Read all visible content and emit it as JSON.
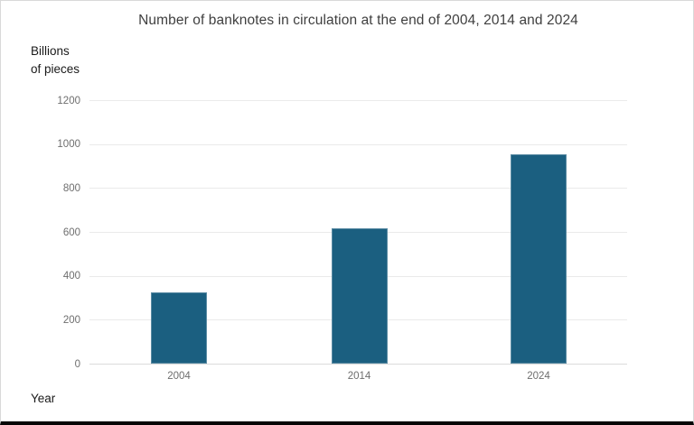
{
  "window": {
    "background": "#ffffff",
    "frame_border_color": "#d9d9d9",
    "bottom_bar_color": "#060606"
  },
  "chart_data": {
    "type": "bar",
    "title": "Number of banknotes in circulation at the end of 2004, 2014 and 2024",
    "y_unit_label_line1": "Billions",
    "y_unit_label_line2": "of pieces",
    "x_axis_label": "Year",
    "categories": [
      "2004",
      "2014",
      "2024"
    ],
    "values": [
      325,
      620,
      955
    ],
    "yticks": [
      0,
      200,
      400,
      600,
      800,
      1000,
      1200
    ],
    "ylim": [
      0,
      1200
    ],
    "grid": true,
    "legend": "none",
    "bar_color": "#1b5f80",
    "title_color": "#3f3f3f",
    "tick_label_color": "#6e6e6e",
    "axis_label_color": "#1a1a1a",
    "gridline_color": "#eaeaea",
    "zero_line_color": "#dcdcdc"
  }
}
